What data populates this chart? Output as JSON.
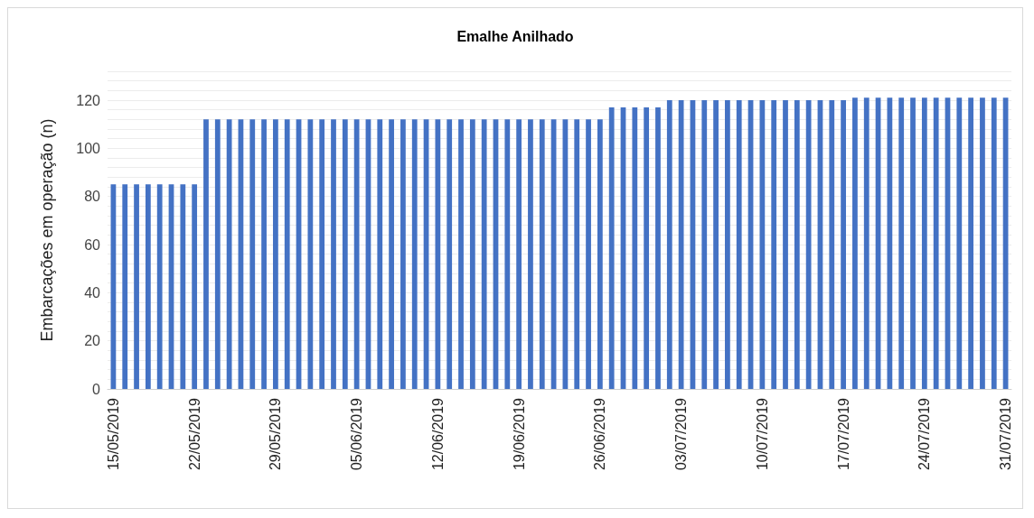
{
  "chart_data": {
    "type": "bar",
    "title": "Emalhe Anilhado",
    "ylabel": "Embarcações em operação (n)",
    "categories": [
      "15/05/2019",
      null,
      null,
      null,
      null,
      null,
      null,
      "22/05/2019",
      null,
      null,
      null,
      null,
      null,
      null,
      "29/05/2019",
      null,
      null,
      null,
      null,
      null,
      null,
      "05/06/2019",
      null,
      null,
      null,
      null,
      null,
      null,
      "12/06/2019",
      null,
      null,
      null,
      null,
      null,
      null,
      "19/06/2019",
      null,
      null,
      null,
      null,
      null,
      null,
      "26/06/2019",
      null,
      null,
      null,
      null,
      null,
      null,
      "03/07/2019",
      null,
      null,
      null,
      null,
      null,
      null,
      "10/07/2019",
      null,
      null,
      null,
      null,
      null,
      null,
      "17/07/2019",
      null,
      null,
      null,
      null,
      null,
      null,
      "24/07/2019",
      null,
      null,
      null,
      null,
      null,
      null,
      "31/07/2019"
    ],
    "values": [
      85,
      85,
      85,
      85,
      85,
      85,
      85,
      85,
      112,
      112,
      112,
      112,
      112,
      112,
      112,
      112,
      112,
      112,
      112,
      112,
      112,
      112,
      112,
      112,
      112,
      112,
      112,
      112,
      112,
      112,
      112,
      112,
      112,
      112,
      112,
      112,
      112,
      112,
      112,
      112,
      112,
      112,
      112,
      117,
      117,
      117,
      117,
      117,
      120,
      120,
      120,
      120,
      120,
      120,
      120,
      120,
      120,
      120,
      120,
      120,
      120,
      120,
      120,
      120,
      121,
      121,
      121,
      121,
      121,
      121,
      121,
      121,
      121,
      121,
      121,
      121,
      121,
      121
    ],
    "color": "#4472c4",
    "ylim": [
      0,
      132
    ],
    "yticks": [
      0,
      {
        "value": 4,
        "label": null
      },
      {
        "value": 8,
        "label": null
      },
      {
        "value": 12,
        "label": null
      },
      {
        "value": 16,
        "label": null
      },
      20,
      {
        "value": 24,
        "label": null
      },
      {
        "value": 28,
        "label": null
      },
      {
        "value": 32,
        "label": null
      },
      {
        "value": 36,
        "label": null
      },
      40,
      {
        "value": 44,
        "label": null
      },
      {
        "value": 48,
        "label": null
      },
      {
        "value": 52,
        "label": null
      },
      {
        "value": 56,
        "label": null
      },
      60,
      {
        "value": 64,
        "label": null
      },
      {
        "value": 68,
        "label": null
      },
      {
        "value": 72,
        "label": null
      },
      {
        "value": 76,
        "label": null
      },
      80,
      {
        "value": 84,
        "label": null
      },
      {
        "value": 88,
        "label": null
      },
      {
        "value": 92,
        "label": null
      },
      {
        "value": 96,
        "label": null
      },
      100,
      {
        "value": 104,
        "label": null
      },
      {
        "value": 108,
        "label": null
      },
      {
        "value": 112,
        "label": null
      },
      {
        "value": 116,
        "label": null
      },
      120,
      {
        "value": 124,
        "label": null
      },
      {
        "value": 128,
        "label": null
      },
      {
        "value": 132,
        "label": null
      }
    ],
    "grid": "y"
  }
}
